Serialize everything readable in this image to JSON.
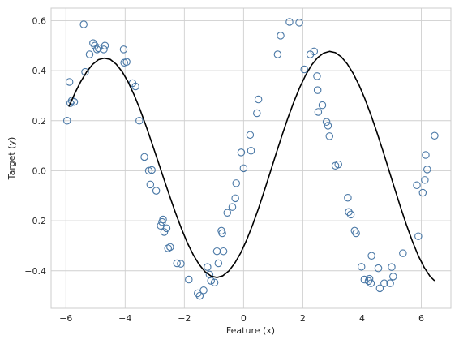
{
  "chart_data": {
    "type": "scatter",
    "xlabel": "Feature (x)",
    "ylabel": "Target (y)",
    "xlim": [
      -6.5,
      7.0
    ],
    "ylim": [
      -0.55,
      0.65
    ],
    "xticks": [
      -6,
      -4,
      -2,
      0,
      2,
      4,
      6
    ],
    "yticks": [
      -0.4,
      -0.2,
      0.0,
      0.2,
      0.4,
      0.6
    ],
    "xtick_labels": [
      "−6",
      "−4",
      "−2",
      "0",
      "2",
      "4",
      "6"
    ],
    "ytick_labels": [
      "−0.4",
      "−0.2",
      "0.0",
      "0.2",
      "0.4",
      "0.6"
    ],
    "grid": true,
    "marker_color": "#4a78a6",
    "line_color": "#000000",
    "series": [
      {
        "kind": "scatter",
        "x": [
          -5.96,
          -5.88,
          -5.85,
          -5.8,
          -5.72,
          -5.4,
          -5.35,
          -5.2,
          -5.08,
          -5.02,
          -4.95,
          -4.9,
          -4.72,
          -4.68,
          -4.05,
          -4.03,
          -3.95,
          -3.75,
          -3.65,
          -3.52,
          -3.35,
          -3.2,
          -3.15,
          -3.1,
          -2.95,
          -2.8,
          -2.75,
          -2.72,
          -2.68,
          -2.6,
          -2.55,
          -2.48,
          -2.25,
          -2.12,
          -1.85,
          -1.55,
          -1.48,
          -1.35,
          -1.22,
          -1.15,
          -1.1,
          -0.98,
          -0.9,
          -0.85,
          -0.75,
          -0.72,
          -0.68,
          -0.55,
          -0.38,
          -0.28,
          -0.25,
          -0.08,
          0.0,
          0.22,
          0.25,
          0.45,
          0.5,
          1.15,
          1.25,
          1.55,
          1.88,
          2.05,
          2.25,
          2.38,
          2.48,
          2.5,
          2.52,
          2.66,
          2.8,
          2.85,
          2.9,
          3.1,
          3.2,
          3.52,
          3.55,
          3.62,
          3.75,
          3.8,
          3.98,
          4.08,
          4.22,
          4.25,
          4.3,
          4.32,
          4.55,
          4.6,
          4.75,
          4.95,
          5.0,
          5.05,
          5.38,
          5.85,
          5.9,
          6.05,
          6.12,
          6.15,
          6.2,
          6.45
        ],
        "y": [
          0.2,
          0.355,
          0.27,
          0.28,
          0.275,
          0.585,
          0.395,
          0.465,
          0.51,
          0.5,
          0.485,
          0.49,
          0.485,
          0.5,
          0.485,
          0.432,
          0.435,
          0.35,
          0.337,
          0.2,
          0.055,
          0.0,
          -0.055,
          0.003,
          -0.08,
          -0.22,
          -0.205,
          -0.195,
          -0.245,
          -0.23,
          -0.31,
          -0.305,
          -0.37,
          -0.372,
          -0.435,
          -0.49,
          -0.5,
          -0.478,
          -0.385,
          -0.415,
          -0.44,
          -0.447,
          -0.322,
          -0.37,
          -0.24,
          -0.25,
          -0.322,
          -0.168,
          -0.145,
          -0.11,
          -0.05,
          0.073,
          0.01,
          0.143,
          0.08,
          0.23,
          0.285,
          0.465,
          0.54,
          0.595,
          0.592,
          0.405,
          0.465,
          0.477,
          0.378,
          0.322,
          0.235,
          0.262,
          0.195,
          0.18,
          0.138,
          0.02,
          0.025,
          -0.108,
          -0.165,
          -0.175,
          -0.24,
          -0.25,
          -0.384,
          -0.435,
          -0.441,
          -0.432,
          -0.45,
          -0.34,
          -0.39,
          -0.47,
          -0.45,
          -0.45,
          -0.385,
          -0.423,
          -0.33,
          -0.058,
          -0.262,
          -0.088,
          -0.037,
          0.063,
          0.005,
          0.14
        ]
      },
      {
        "kind": "line",
        "x": [
          -5.9,
          -5.7,
          -5.5,
          -5.3,
          -5.1,
          -4.9,
          -4.7,
          -4.5,
          -4.3,
          -4.1,
          -3.9,
          -3.7,
          -3.5,
          -3.3,
          -3.1,
          -2.9,
          -2.7,
          -2.5,
          -2.3,
          -2.1,
          -1.9,
          -1.7,
          -1.5,
          -1.3,
          -1.1,
          -0.9,
          -0.7,
          -0.5,
          -0.3,
          -0.1,
          0.1,
          0.3,
          0.5,
          0.7,
          0.9,
          1.1,
          1.3,
          1.5,
          1.7,
          1.9,
          2.1,
          2.3,
          2.5,
          2.7,
          2.9,
          3.1,
          3.3,
          3.5,
          3.7,
          3.9,
          4.1,
          4.3,
          4.5,
          4.7,
          4.9,
          5.1,
          5.3,
          5.5,
          5.7,
          5.9,
          6.1,
          6.3,
          6.45
        ],
        "y": [
          0.256,
          0.309,
          0.356,
          0.395,
          0.425,
          0.444,
          0.45,
          0.445,
          0.426,
          0.396,
          0.355,
          0.304,
          0.246,
          0.181,
          0.112,
          0.041,
          -0.03,
          -0.1,
          -0.168,
          -0.231,
          -0.288,
          -0.336,
          -0.375,
          -0.404,
          -0.421,
          -0.427,
          -0.42,
          -0.401,
          -0.37,
          -0.329,
          -0.278,
          -0.218,
          -0.152,
          -0.08,
          -0.006,
          0.069,
          0.142,
          0.212,
          0.276,
          0.334,
          0.383,
          0.423,
          0.452,
          0.47,
          0.477,
          0.472,
          0.455,
          0.427,
          0.389,
          0.342,
          0.286,
          0.223,
          0.154,
          0.081,
          0.005,
          -0.071,
          -0.146,
          -0.217,
          -0.282,
          -0.34,
          -0.387,
          -0.423,
          -0.44
        ]
      }
    ]
  }
}
